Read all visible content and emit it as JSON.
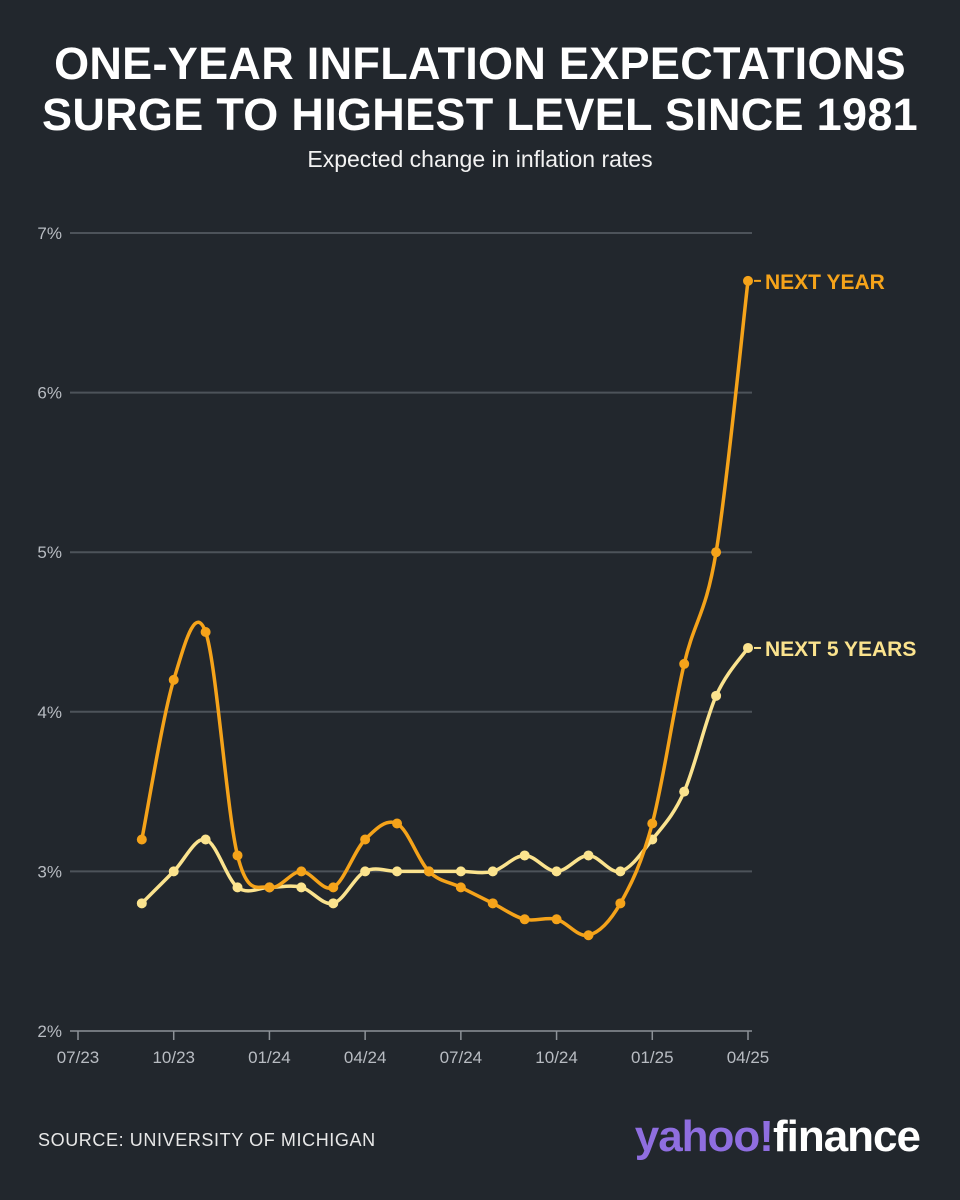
{
  "header": {
    "title_line1": "ONE-YEAR INFLATION EXPECTATIONS",
    "title_line2": "SURGE TO HIGHEST LEVEL SINCE 1981",
    "subtitle": "Expected change in inflation rates"
  },
  "footer": {
    "source": "SOURCE: UNIVERSITY OF MICHIGAN",
    "logo_part1": "yahoo!",
    "logo_part2": "finance"
  },
  "colors": {
    "background": "#22272d",
    "next_year": "#f5a31a",
    "next_5_years": "#fbe38e",
    "gridline": "#4d535a",
    "axis_text": "#b8bcc2"
  },
  "chart_data": {
    "type": "line",
    "title": "ONE-YEAR INFLATION EXPECTATIONS SURGE TO HIGHEST LEVEL SINCE 1981",
    "subtitle": "Expected change in inflation rates",
    "xlabel": "",
    "ylabel": "",
    "ylim": [
      2,
      7
    ],
    "yticks": [
      2,
      3,
      4,
      5,
      6,
      7
    ],
    "ytick_labels": [
      "2%",
      "3%",
      "4%",
      "5%",
      "6%",
      "7%"
    ],
    "xtick_labels": [
      "07/23",
      "10/23",
      "01/24",
      "04/24",
      "07/24",
      "10/24",
      "01/25",
      "04/25"
    ],
    "x_range_months": [
      0,
      21
    ],
    "grid": true,
    "legend": "inline labels at line ends (right)",
    "series": [
      {
        "name": "NEXT YEAR",
        "x": [
          2,
          3,
          4,
          5,
          6,
          7,
          8,
          9,
          10,
          11,
          12,
          13,
          14,
          15,
          16,
          17,
          18,
          19,
          20,
          21
        ],
        "values": [
          3.2,
          4.2,
          4.5,
          3.1,
          2.9,
          3.0,
          2.9,
          3.2,
          3.3,
          3.0,
          2.9,
          2.8,
          2.7,
          2.7,
          2.6,
          2.8,
          3.3,
          4.3,
          5.0,
          6.7
        ]
      },
      {
        "name": "NEXT 5 YEARS",
        "x": [
          2,
          3,
          4,
          5,
          6,
          7,
          8,
          9,
          10,
          11,
          12,
          13,
          14,
          15,
          16,
          17,
          18,
          19,
          20,
          21
        ],
        "values": [
          2.8,
          3.0,
          3.2,
          2.9,
          2.9,
          2.9,
          2.8,
          3.0,
          3.0,
          3.0,
          3.0,
          3.0,
          3.1,
          3.0,
          3.1,
          3.0,
          3.2,
          3.5,
          4.1,
          4.4
        ]
      }
    ]
  }
}
